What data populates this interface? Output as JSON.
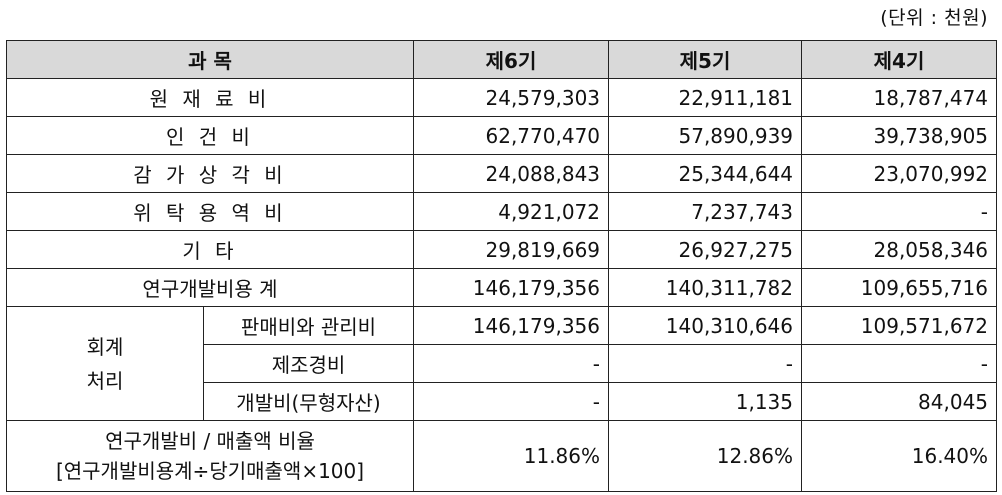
{
  "unit_note": "(단위 : 천원)",
  "header": {
    "subject": "과 목",
    "years": [
      "제6기",
      "제5기",
      "제4기"
    ]
  },
  "rows": [
    {
      "label": "원 재 료 비",
      "values": [
        "24,579,303",
        "22,911,181",
        "18,787,474"
      ]
    },
    {
      "label": "인 건 비",
      "values": [
        "62,770,470",
        "57,890,939",
        "39,738,905"
      ]
    },
    {
      "label": "감 가 상 각 비",
      "values": [
        "24,088,843",
        "25,344,644",
        "23,070,992"
      ]
    },
    {
      "label": "위 탁 용 역 비",
      "values": [
        "4,921,072",
        "7,237,743",
        "-"
      ]
    },
    {
      "label": "기 타",
      "values": [
        "29,819,669",
        "26,927,275",
        "28,058,346"
      ]
    },
    {
      "label": "연구개발비용 계",
      "values": [
        "146,179,356",
        "140,311,782",
        "109,655,716"
      ]
    }
  ],
  "accounting": {
    "label_line1": "회계",
    "label_line2": "처리",
    "items": [
      {
        "label": "판매비와 관리비",
        "values": [
          "146,179,356",
          "140,310,646",
          "109,571,672"
        ]
      },
      {
        "label": "제조경비",
        "values": [
          "-",
          "-",
          "-"
        ]
      },
      {
        "label": "개발비(무형자산)",
        "values": [
          "-",
          "1,135",
          "84,045"
        ]
      }
    ]
  },
  "ratio": {
    "label_line1": "연구개발비 / 매출액 비율",
    "label_line2": "[연구개발비용계÷당기매출액×100]",
    "values": [
      "11.86%",
      "12.86%",
      "16.40%"
    ]
  }
}
